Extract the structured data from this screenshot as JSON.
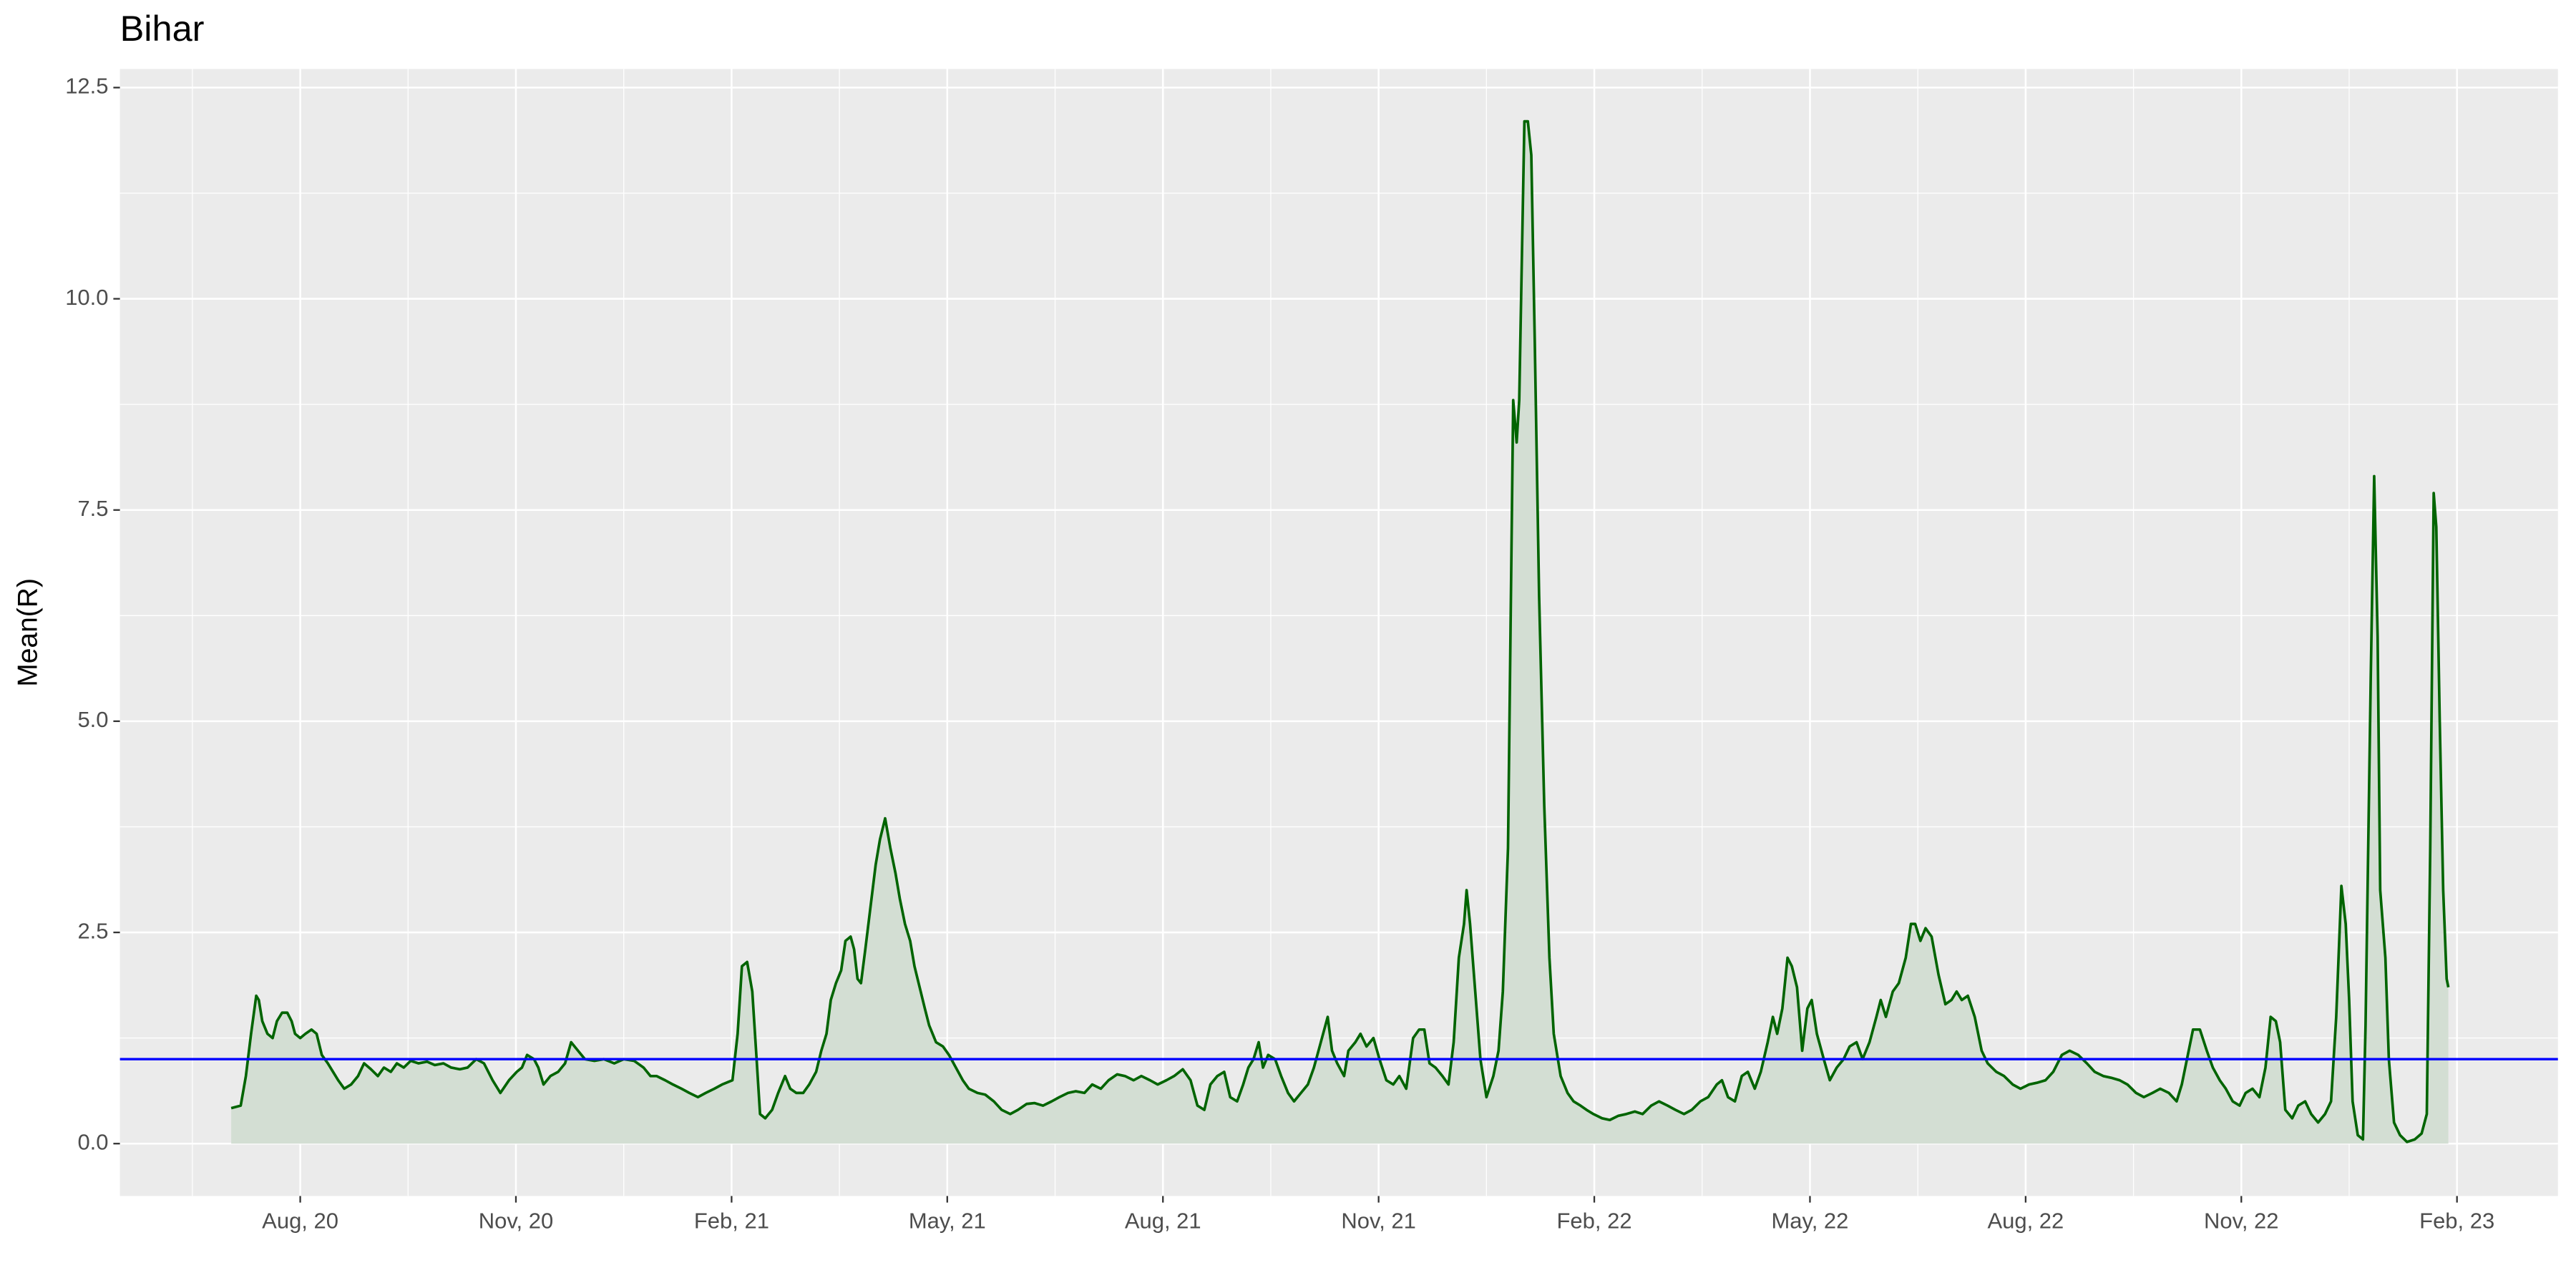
{
  "chart_data": {
    "type": "area",
    "title": "Bihar",
    "y_label": "Mean(R)",
    "color": "#006400",
    "fill_color": "#d3ded3",
    "hline": 1,
    "hline_color": "#0000ff",
    "grid": true,
    "xlim": [
      2020.374,
      2023.2
    ],
    "ylim": [
      -0.62,
      12.72
    ],
    "xticks": [
      {
        "value": 2020.583,
        "label": "Aug, 20"
      },
      {
        "value": 2020.833,
        "label": "Nov, 20"
      },
      {
        "value": 2021.083,
        "label": "Feb, 21"
      },
      {
        "value": 2021.333,
        "label": "May, 21"
      },
      {
        "value": 2021.583,
        "label": "Aug, 21"
      },
      {
        "value": 2021.833,
        "label": "Nov, 21"
      },
      {
        "value": 2022.083,
        "label": "Feb, 22"
      },
      {
        "value": 2022.333,
        "label": "May, 22"
      },
      {
        "value": 2022.583,
        "label": "Aug, 22"
      },
      {
        "value": 2022.833,
        "label": "Nov, 22"
      },
      {
        "value": 2023.083,
        "label": "Feb, 23"
      }
    ],
    "yticks": [
      {
        "value": 0,
        "label": "0.0"
      },
      2.5,
      {
        "value": 5,
        "label": "5.0"
      },
      7.5,
      {
        "value": 10,
        "label": "10.0"
      },
      12.5
    ],
    "x": [
      2020.503,
      2020.514,
      2020.52,
      2020.526,
      2020.532,
      2020.535,
      2020.539,
      2020.545,
      2020.551,
      2020.556,
      2020.562,
      2020.568,
      2020.573,
      2020.577,
      2020.583,
      2020.589,
      2020.596,
      2020.602,
      2020.608,
      2020.615,
      2020.621,
      2020.627,
      2020.634,
      2020.642,
      2020.65,
      2020.657,
      2020.665,
      2020.673,
      2020.68,
      2020.688,
      2020.695,
      2020.703,
      2020.711,
      2020.72,
      2020.73,
      2020.739,
      2020.749,
      2020.758,
      2020.768,
      2020.777,
      2020.787,
      2020.796,
      2020.806,
      2020.815,
      2020.825,
      2020.834,
      2020.84,
      2020.846,
      2020.854,
      2020.859,
      2020.865,
      2020.873,
      2020.882,
      2020.89,
      2020.897,
      2020.905,
      2020.913,
      2020.924,
      2020.935,
      2020.947,
      2020.958,
      2020.97,
      2020.981,
      2020.989,
      2020.996,
      2021.006,
      2021.015,
      2021.025,
      2021.034,
      2021.044,
      2021.053,
      2021.063,
      2021.072,
      2021.084,
      2021.09,
      2021.095,
      2021.101,
      2021.107,
      2021.112,
      2021.116,
      2021.122,
      2021.13,
      2021.137,
      2021.145,
      2021.151,
      2021.158,
      2021.166,
      2021.173,
      2021.181,
      2021.187,
      2021.193,
      2021.198,
      2021.204,
      2021.21,
      2021.215,
      2021.221,
      2021.225,
      2021.229,
      2021.233,
      2021.238,
      2021.244,
      2021.25,
      2021.255,
      2021.261,
      2021.267,
      2021.273,
      2021.278,
      2021.284,
      2021.29,
      2021.295,
      2021.301,
      2021.307,
      2021.312,
      2021.32,
      2021.328,
      2021.335,
      2021.343,
      2021.351,
      2021.358,
      2021.368,
      2021.377,
      2021.387,
      2021.396,
      2021.406,
      2021.415,
      2021.425,
      2021.434,
      2021.444,
      2021.454,
      2021.463,
      2021.473,
      2021.482,
      2021.492,
      2021.501,
      2021.511,
      2021.52,
      2021.53,
      2021.539,
      2021.549,
      2021.558,
      2021.568,
      2021.577,
      2021.587,
      2021.596,
      2021.606,
      2021.615,
      2021.623,
      2021.631,
      2021.638,
      2021.646,
      2021.654,
      2021.661,
      2021.669,
      2021.676,
      2021.682,
      2021.688,
      2021.694,
      2021.699,
      2021.705,
      2021.713,
      2021.72,
      2021.728,
      2021.735,
      2021.743,
      2021.751,
      2021.758,
      2021.766,
      2021.774,
      2021.779,
      2021.785,
      2021.793,
      2021.798,
      2021.806,
      2021.812,
      2021.819,
      2021.827,
      2021.834,
      2021.842,
      2021.85,
      2021.857,
      2021.865,
      2021.873,
      2021.88,
      2021.886,
      2021.892,
      2021.899,
      2021.907,
      2021.914,
      2021.92,
      2021.926,
      2021.932,
      2021.935,
      2021.939,
      2021.945,
      2021.951,
      2021.958,
      2021.966,
      2021.972,
      2021.977,
      2021.983,
      2021.989,
      2021.993,
      2021.996,
      2022.002,
      2022.006,
      2022.01,
      2022.014,
      2022.019,
      2022.025,
      2022.031,
      2022.036,
      2022.044,
      2022.052,
      2022.059,
      2022.067,
      2022.074,
      2022.082,
      2022.092,
      2022.101,
      2022.111,
      2022.12,
      2022.13,
      2022.139,
      2022.149,
      2022.158,
      2022.168,
      2022.177,
      2022.187,
      2022.196,
      2022.206,
      2022.215,
      2022.225,
      2022.231,
      2022.238,
      2022.246,
      2022.254,
      2022.261,
      2022.269,
      2022.276,
      2022.284,
      2022.29,
      2022.295,
      2022.301,
      2022.307,
      2022.312,
      2022.318,
      2022.324,
      2022.33,
      2022.335,
      2022.341,
      2022.349,
      2022.356,
      2022.364,
      2022.372,
      2022.379,
      2022.387,
      2022.394,
      2022.402,
      2022.41,
      2022.415,
      2022.421,
      2022.429,
      2022.436,
      2022.444,
      2022.45,
      2022.455,
      2022.461,
      2022.467,
      2022.474,
      2022.482,
      2022.49,
      2022.497,
      2022.503,
      2022.509,
      2022.516,
      2022.524,
      2022.532,
      2022.539,
      2022.549,
      2022.558,
      2022.568,
      2022.577,
      2022.587,
      2022.596,
      2022.606,
      2022.615,
      2022.625,
      2022.634,
      2022.644,
      2022.654,
      2022.663,
      2022.673,
      2022.682,
      2022.692,
      2022.701,
      2022.711,
      2022.72,
      2022.73,
      2022.739,
      2022.749,
      2022.758,
      2022.764,
      2022.772,
      2022.777,
      2022.785,
      2022.793,
      2022.8,
      2022.808,
      2022.815,
      2022.823,
      2022.831,
      2022.838,
      2022.846,
      2022.854,
      2022.861,
      2022.867,
      2022.873,
      2022.878,
      2022.884,
      2022.892,
      2022.899,
      2022.907,
      2022.914,
      2022.922,
      2022.93,
      2022.937,
      2022.943,
      2022.949,
      2022.954,
      2022.958,
      2022.962,
      2022.968,
      2022.974,
      2022.977,
      2022.983,
      2022.987,
      2022.991,
      2022.994,
      2023.0,
      2023.004,
      2023.01,
      2023.017,
      2023.025,
      2023.034,
      2023.042,
      2023.048,
      2023.052,
      2023.056,
      2023.059,
      2023.063,
      2023.067,
      2023.071,
      2023.073
    ],
    "values": [
      0.42,
      0.45,
      0.8,
      1.3,
      1.75,
      1.7,
      1.45,
      1.3,
      1.25,
      1.45,
      1.55,
      1.55,
      1.45,
      1.3,
      1.25,
      1.3,
      1.35,
      1.3,
      1.05,
      0.95,
      0.85,
      0.75,
      0.65,
      0.7,
      0.8,
      0.95,
      0.88,
      0.8,
      0.9,
      0.85,
      0.95,
      0.9,
      0.98,
      0.95,
      0.97,
      0.93,
      0.95,
      0.9,
      0.88,
      0.9,
      1.0,
      0.95,
      0.75,
      0.6,
      0.75,
      0.85,
      0.9,
      1.05,
      1.0,
      0.9,
      0.7,
      0.8,
      0.85,
      0.95,
      1.2,
      1.1,
      1.0,
      0.98,
      1.0,
      0.95,
      1.0,
      0.98,
      0.9,
      0.8,
      0.8,
      0.75,
      0.7,
      0.65,
      0.6,
      0.55,
      0.6,
      0.65,
      0.7,
      0.75,
      1.3,
      2.1,
      2.15,
      1.8,
      1.0,
      0.35,
      0.3,
      0.4,
      0.6,
      0.8,
      0.65,
      0.6,
      0.6,
      0.7,
      0.85,
      1.1,
      1.3,
      1.7,
      1.9,
      2.05,
      2.4,
      2.45,
      2.3,
      1.95,
      1.9,
      2.3,
      2.8,
      3.3,
      3.6,
      3.85,
      3.5,
      3.2,
      2.9,
      2.6,
      2.4,
      2.1,
      1.85,
      1.6,
      1.4,
      1.2,
      1.15,
      1.05,
      0.9,
      0.75,
      0.65,
      0.6,
      0.58,
      0.5,
      0.4,
      0.35,
      0.4,
      0.47,
      0.48,
      0.45,
      0.5,
      0.55,
      0.6,
      0.62,
      0.6,
      0.7,
      0.65,
      0.75,
      0.82,
      0.8,
      0.75,
      0.8,
      0.75,
      0.7,
      0.75,
      0.8,
      0.88,
      0.75,
      0.45,
      0.4,
      0.7,
      0.8,
      0.85,
      0.55,
      0.5,
      0.7,
      0.9,
      1.0,
      1.2,
      0.9,
      1.05,
      1.0,
      0.8,
      0.6,
      0.5,
      0.6,
      0.7,
      0.9,
      1.2,
      1.5,
      1.1,
      0.95,
      0.8,
      1.1,
      1.2,
      1.3,
      1.15,
      1.25,
      1.0,
      0.75,
      0.7,
      0.8,
      0.65,
      1.25,
      1.35,
      1.35,
      0.95,
      0.9,
      0.8,
      0.7,
      1.2,
      2.2,
      2.6,
      3.0,
      2.6,
      1.8,
      1.0,
      0.55,
      0.8,
      1.1,
      1.8,
      3.5,
      8.8,
      8.3,
      8.8,
      12.1,
      12.1,
      11.7,
      9.5,
      6.5,
      4.0,
      2.2,
      1.3,
      0.8,
      0.6,
      0.5,
      0.45,
      0.4,
      0.35,
      0.3,
      0.28,
      0.33,
      0.35,
      0.38,
      0.35,
      0.45,
      0.5,
      0.45,
      0.4,
      0.35,
      0.4,
      0.5,
      0.55,
      0.7,
      0.75,
      0.55,
      0.5,
      0.8,
      0.85,
      0.65,
      0.85,
      1.2,
      1.5,
      1.3,
      1.6,
      2.2,
      2.1,
      1.85,
      1.1,
      1.6,
      1.7,
      1.3,
      1.0,
      0.75,
      0.9,
      1.0,
      1.15,
      1.2,
      1.0,
      1.2,
      1.5,
      1.7,
      1.5,
      1.8,
      1.9,
      2.2,
      2.6,
      2.6,
      2.4,
      2.55,
      2.45,
      2.0,
      1.65,
      1.7,
      1.8,
      1.7,
      1.75,
      1.5,
      1.1,
      0.95,
      0.85,
      0.8,
      0.7,
      0.65,
      0.7,
      0.72,
      0.75,
      0.85,
      1.05,
      1.1,
      1.05,
      0.95,
      0.85,
      0.8,
      0.78,
      0.75,
      0.7,
      0.6,
      0.55,
      0.6,
      0.65,
      0.6,
      0.5,
      0.7,
      1.1,
      1.35,
      1.35,
      1.1,
      0.9,
      0.75,
      0.65,
      0.5,
      0.45,
      0.6,
      0.65,
      0.55,
      0.9,
      1.5,
      1.45,
      1.2,
      0.4,
      0.3,
      0.45,
      0.5,
      0.35,
      0.25,
      0.35,
      0.5,
      1.5,
      3.05,
      2.6,
      1.7,
      0.5,
      0.1,
      0.05,
      1.4,
      5.5,
      7.9,
      6.0,
      3.0,
      2.2,
      1.0,
      0.25,
      0.1,
      0.02,
      0.05,
      0.12,
      0.35,
      3.5,
      7.7,
      7.3,
      5.0,
      3.0,
      1.95,
      1.85
    ]
  }
}
